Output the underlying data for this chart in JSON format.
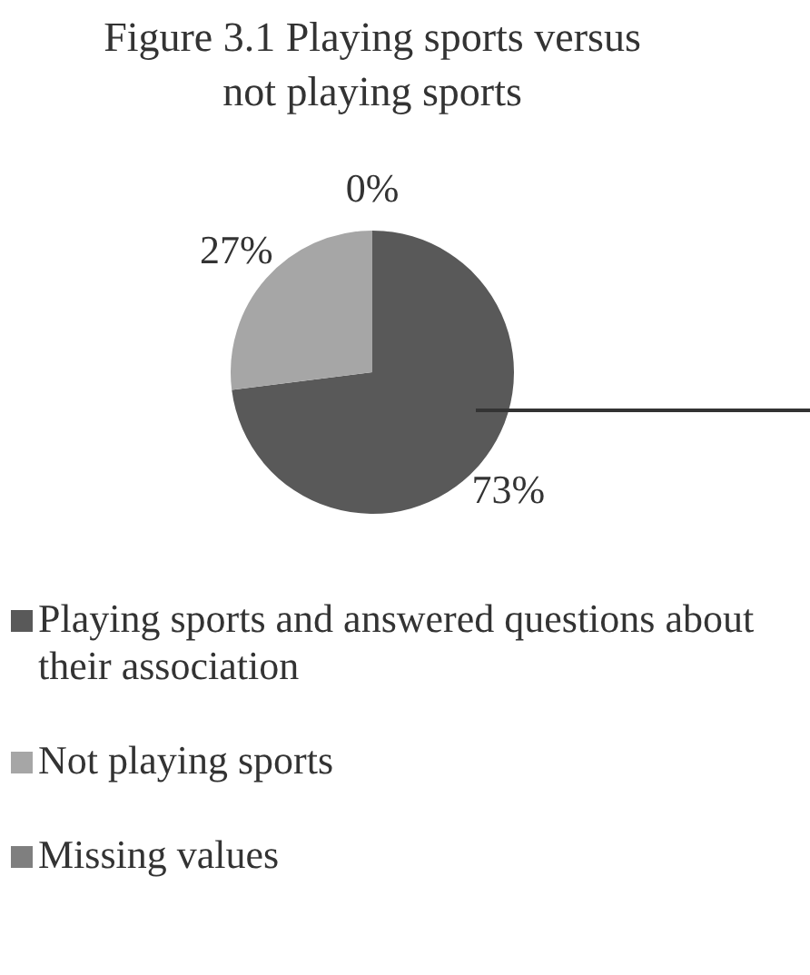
{
  "chart_data": {
    "type": "pie",
    "title": "Figure 3.1 Playing sports versus not playing sports",
    "categories": [
      "Playing sports and answered questions about their association",
      "Not playing sports",
      "Missing values"
    ],
    "values": [
      73,
      27,
      0
    ],
    "colors": [
      "#595959",
      "#a6a6a6",
      "#7f7f7f"
    ],
    "value_labels": [
      "73%",
      "27%",
      "0%"
    ],
    "legend": "bottom"
  }
}
